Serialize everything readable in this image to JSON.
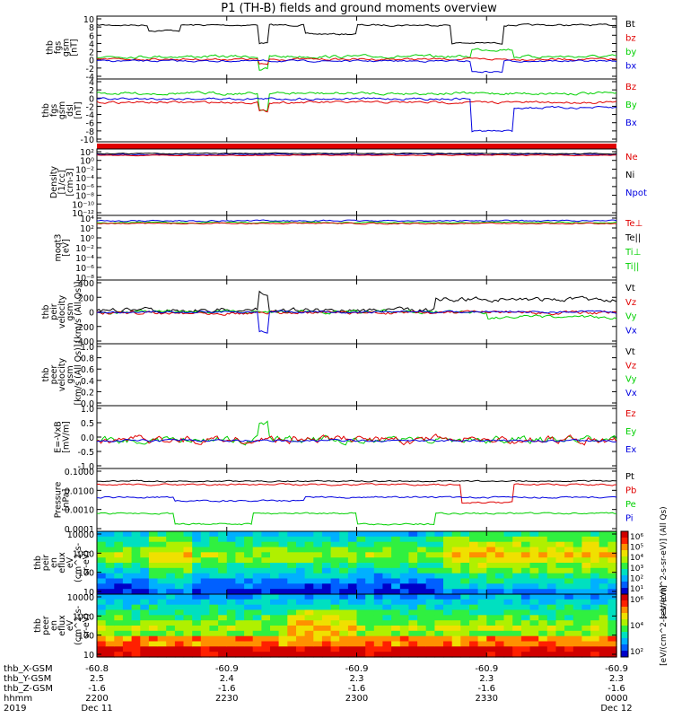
{
  "title": "P1 (TH-B) fields and ground moments overview",
  "colors": {
    "black": "#000000",
    "red": "#e00000",
    "green": "#00d000",
    "blue": "#0000e0"
  },
  "chart_data": {
    "type": "line",
    "time_axis": {
      "ticks": [
        "2200",
        "2230",
        "2300",
        "2330",
        "0000"
      ],
      "tick_dates": [
        "Dec 11",
        "",
        "",
        "",
        "Dec 12"
      ],
      "rows": [
        {
          "label": "thb_X-GSM",
          "values": [
            "-60.8",
            "-60.9",
            "-60.9",
            "-60.9",
            "-60.9"
          ]
        },
        {
          "label": "thb_Y-GSM",
          "values": [
            "2.5",
            "2.4",
            "2.3",
            "2.3",
            "2.3"
          ]
        },
        {
          "label": "thb_Z-GSM",
          "values": [
            "-1.6",
            "-1.6",
            "-1.6",
            "-1.6",
            "-1.6"
          ]
        },
        {
          "label": "hhmm",
          "values": [
            "2200",
            "2230",
            "2300",
            "2330",
            "0000"
          ]
        },
        {
          "label": "2019",
          "values": [
            "Dec 11",
            "",
            "",
            "",
            "Dec 12"
          ]
        }
      ]
    },
    "panels": [
      {
        "id": "p1",
        "ylabel": [
          "thb",
          "fgs",
          "gsm",
          "[nT]"
        ],
        "ylim": [
          -4,
          10
        ],
        "ticks": [
          "10",
          "8",
          "6",
          "4",
          "2",
          "0",
          "-2",
          "-4"
        ],
        "legend": [
          {
            "name": "Bt",
            "color": "black"
          },
          {
            "name": "bz",
            "color": "red"
          },
          {
            "name": "by",
            "color": "green"
          },
          {
            "name": "bx",
            "color": "blue"
          }
        ]
      },
      {
        "id": "p2",
        "ylabel": [
          "thb",
          "fgs",
          "gsm",
          "dsl",
          "[nT]"
        ],
        "ylim": [
          -10,
          4
        ],
        "ticks": [
          "4",
          "2",
          "0",
          "-2",
          "-4",
          "-6",
          "-8",
          "-10"
        ],
        "legend": [
          {
            "name": "Bz",
            "color": "red"
          },
          {
            "name": "By",
            "color": "green"
          },
          {
            "name": "Bx",
            "color": "blue"
          }
        ]
      },
      {
        "id": "p3",
        "ylabel": [
          "Density",
          "[1/cc]",
          "[cm-3]"
        ],
        "scale": "log",
        "ticks": [
          "10²",
          "10⁰",
          "10⁻²",
          "10⁻⁴",
          "10⁻⁶",
          "10⁻⁸",
          "10⁻¹⁰",
          "10⁻¹²"
        ],
        "legend": [
          {
            "name": "Ne",
            "color": "red"
          },
          {
            "name": "Ni",
            "color": "black"
          },
          {
            "name": "Npot",
            "color": "blue"
          }
        ]
      },
      {
        "id": "p4",
        "ylabel": [
          "moqt3",
          "[eV]"
        ],
        "scale": "log",
        "ticks": [
          "10⁴",
          "10²",
          "10⁰",
          "10⁻²",
          "10⁻⁴",
          "10⁻⁶",
          "10⁻⁸"
        ],
        "legend": [
          {
            "name": "Te⊥",
            "color": "red"
          },
          {
            "name": "Te||",
            "color": "black"
          },
          {
            "name": "Ti⊥",
            "color": "green"
          },
          {
            "name": "Ti||",
            "color": "green"
          }
        ]
      },
      {
        "id": "p5",
        "ylabel": [
          "thb",
          "peir",
          "velocity",
          "gsm",
          "[km/s (All Qs)]"
        ],
        "ylim": [
          -400,
          400
        ],
        "ticks": [
          "400",
          "200",
          "0",
          "-200",
          "-400"
        ],
        "legend": [
          {
            "name": "Vt",
            "color": "black"
          },
          {
            "name": "Vz",
            "color": "red"
          },
          {
            "name": "Vy",
            "color": "green"
          },
          {
            "name": "Vx",
            "color": "blue"
          }
        ]
      },
      {
        "id": "p6",
        "ylabel": [
          "thb",
          "peer",
          "velocity",
          "gsm",
          "[km/s (All Qs)]"
        ],
        "ylim": [
          0,
          1
        ],
        "ticks": [
          "1.0",
          "0.8",
          "0.6",
          "0.4",
          "0.2",
          "0.0"
        ],
        "legend": [
          {
            "name": "Vt",
            "color": "black"
          },
          {
            "name": "Vz",
            "color": "red"
          },
          {
            "name": "Vy",
            "color": "green"
          },
          {
            "name": "Vx",
            "color": "blue"
          }
        ]
      },
      {
        "id": "p7",
        "ylabel": [
          "E=-VxB",
          "[mV/m]"
        ],
        "ylim": [
          -1,
          1
        ],
        "ticks": [
          "1.0",
          "0.5",
          "0.0",
          "-0.5",
          "-1.0"
        ],
        "legend": [
          {
            "name": "Ez",
            "color": "red"
          },
          {
            "name": "Ey",
            "color": "green"
          },
          {
            "name": "Ex",
            "color": "blue"
          }
        ]
      },
      {
        "id": "p8",
        "ylabel": [
          "Pressure",
          "[nPa]"
        ],
        "scale": "log",
        "ticks": [
          "0.1000",
          "0.0100",
          "0.0010",
          "0.0001"
        ],
        "legend": [
          {
            "name": "Pt",
            "color": "black"
          },
          {
            "name": "Pb",
            "color": "red"
          },
          {
            "name": "Pe",
            "color": "green"
          },
          {
            "name": "Pi",
            "color": "blue"
          }
        ]
      },
      {
        "id": "p9",
        "ylabel": [
          "thb",
          "peir",
          "en",
          "eflux",
          "eV",
          "(cm^2-s-",
          "sr-eV)"
        ],
        "scale": "log",
        "ticks": [
          "10000",
          "1000",
          "100",
          "10"
        ],
        "type": "heatmap",
        "colorbar": {
          "ticks": [
            "10⁶",
            "10⁵",
            "10⁴",
            "10³",
            "10²",
            "10¹"
          ],
          "label": "[eV/(cm^2-s-sr-eV)] (All Qs)"
        }
      },
      {
        "id": "p10",
        "ylabel": [
          "thb",
          "peer",
          "en",
          "eflux",
          "eV",
          "(cm^2-s-",
          "sr-eV)"
        ],
        "scale": "log",
        "ticks": [
          "10000",
          "1000",
          "100",
          "10"
        ],
        "type": "heatmap",
        "colorbar": {
          "ticks": [
            "10⁶",
            "10⁴",
            "10²"
          ],
          "label": "[eV/(cm^2-s-sr-eV)]"
        }
      }
    ]
  }
}
